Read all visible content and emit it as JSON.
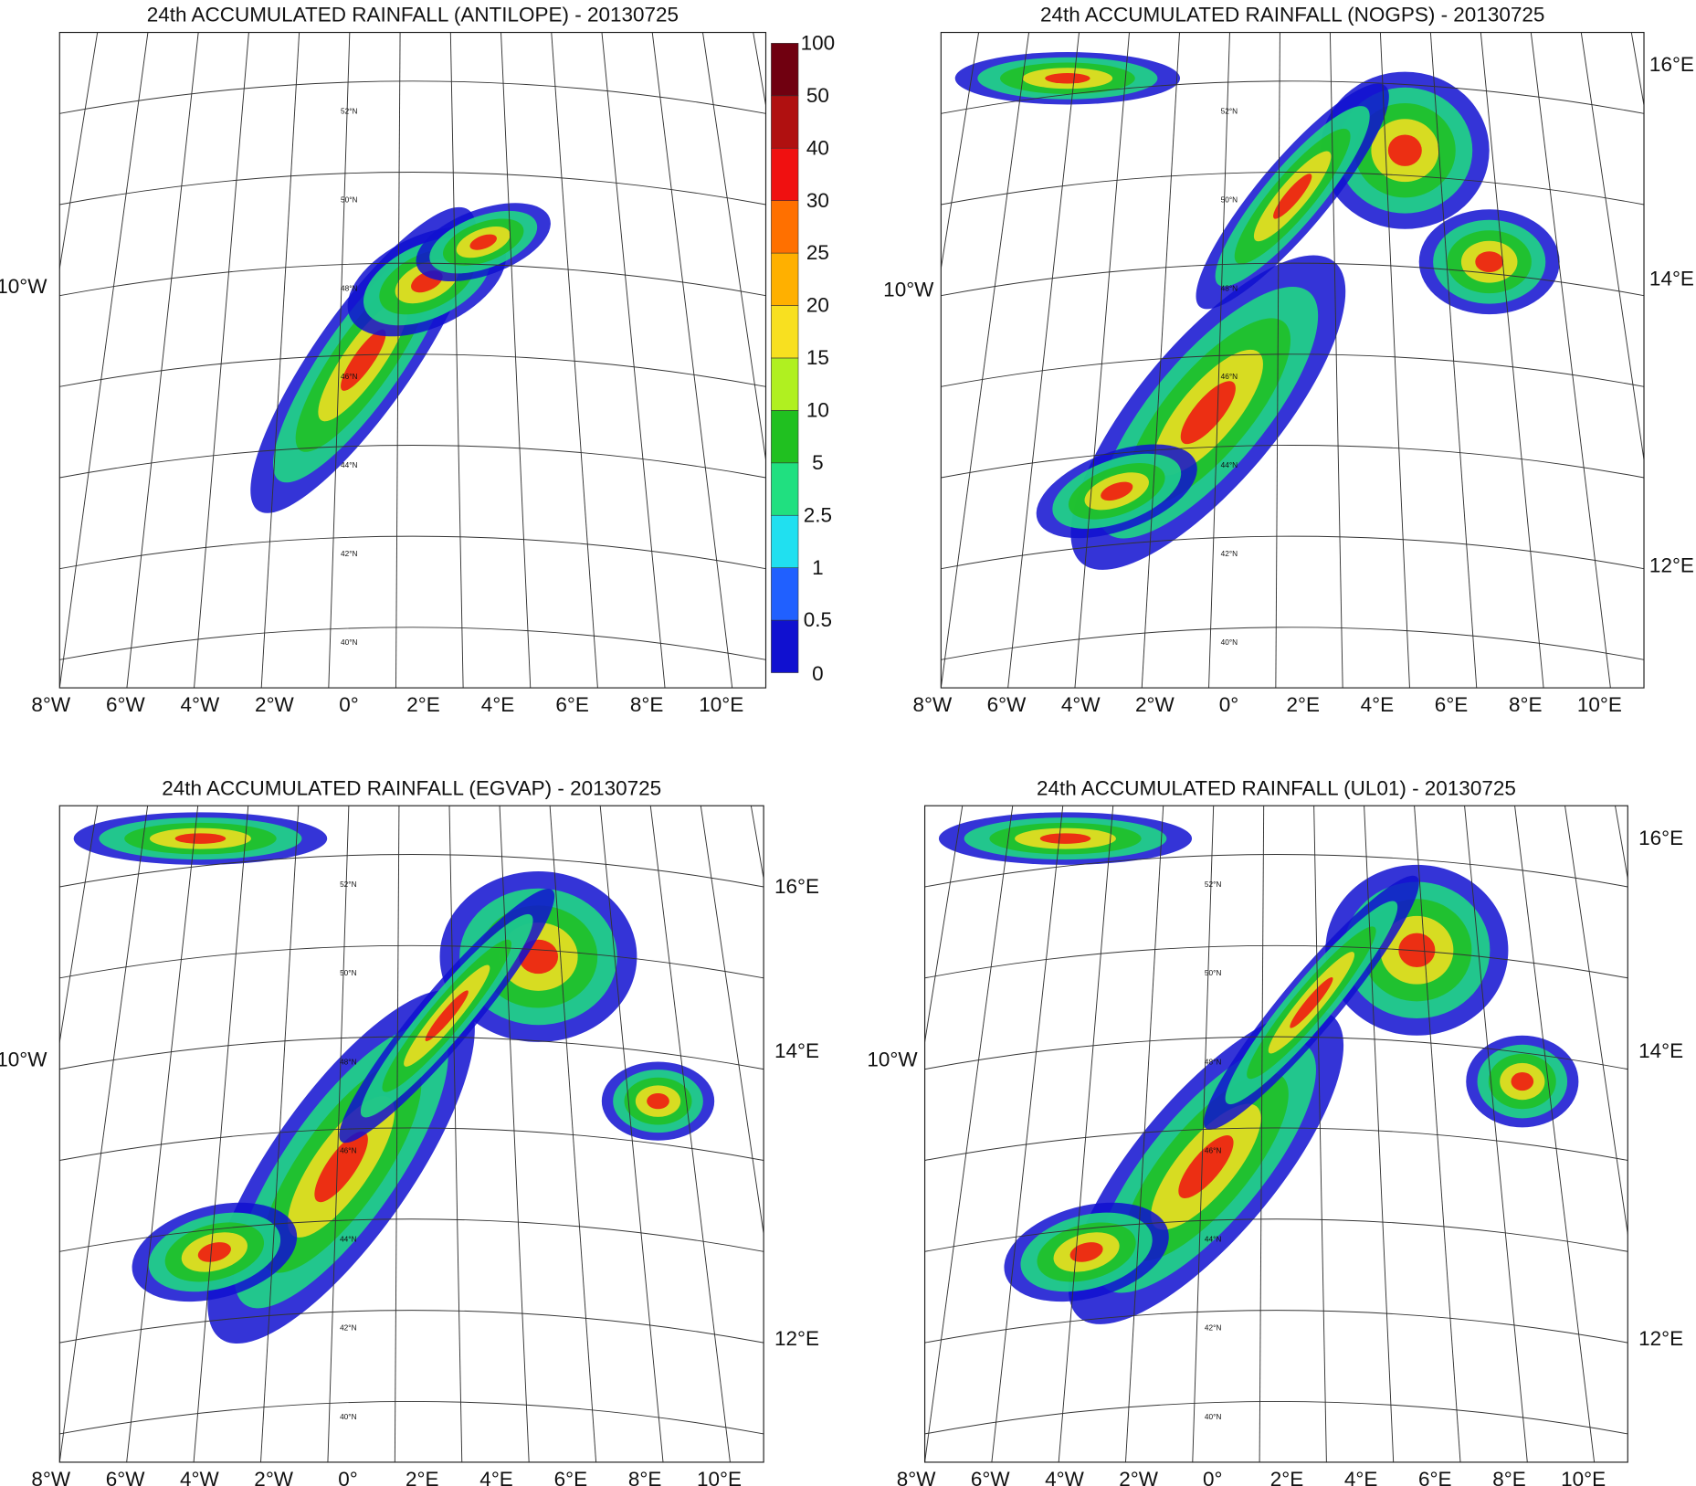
{
  "panels": [
    {
      "title": "24th ACCUMULATED RAINFALL (ANTILOPE) - 20130725",
      "lon_labels": [
        "8°W",
        "6°W",
        "4°W",
        "2°W",
        "0°",
        "2°E",
        "4°E",
        "6°E",
        "8°E",
        "10°E"
      ],
      "left_labels": [
        "10°W"
      ],
      "right_labels": [],
      "lat_labels": [
        "52°N",
        "50°N",
        "48°N",
        "46°N",
        "44°N",
        "42°N",
        "40°N"
      ]
    },
    {
      "title": "24th ACCUMULATED RAINFALL (NOGPS) - 20130725",
      "lon_labels": [
        "8°W",
        "6°W",
        "4°W",
        "2°W",
        "0°",
        "2°E",
        "4°E",
        "6°E",
        "8°E",
        "10°E"
      ],
      "left_labels": [
        "10°W"
      ],
      "right_labels": [
        "16°E",
        "14°E",
        "12°E"
      ],
      "lat_labels": [
        "52°N",
        "50°N",
        "48°N",
        "46°N",
        "44°N",
        "42°N",
        "40°N"
      ]
    },
    {
      "title": "24th ACCUMULATED RAINFALL (EGVAP) - 20130725",
      "lon_labels": [
        "8°W",
        "6°W",
        "4°W",
        "2°W",
        "0°",
        "2°E",
        "4°E",
        "6°E",
        "8°E",
        "10°E"
      ],
      "left_labels": [
        "10°W"
      ],
      "right_labels": [
        "16°E",
        "14°E",
        "12°E"
      ],
      "lat_labels": [
        "52°N",
        "50°N",
        "48°N",
        "46°N",
        "44°N",
        "42°N",
        "40°N"
      ]
    },
    {
      "title": "24th ACCUMULATED RAINFALL (UL01) - 20130725",
      "lon_labels": [
        "8°W",
        "6°W",
        "4°W",
        "2°W",
        "0°",
        "2°E",
        "4°E",
        "6°E",
        "8°E",
        "10°E"
      ],
      "left_labels": [
        "10°W"
      ],
      "right_labels": [
        "16°E",
        "14°E",
        "12°E"
      ],
      "lat_labels": [
        "52°N",
        "50°N",
        "48°N",
        "46°N",
        "44°N",
        "42°N",
        "40°N"
      ]
    }
  ],
  "colorbar": {
    "levels": [
      0,
      0.5,
      1,
      2.5,
      5,
      10,
      15,
      20,
      25,
      30,
      40,
      50,
      100
    ],
    "colors": [
      "#0a0a6e",
      "#1010d0",
      "#2060ff",
      "#20e0f0",
      "#20e080",
      "#20c020",
      "#b0f020",
      "#f8e020",
      "#ffb000",
      "#ff7000",
      "#f01010",
      "#b01010",
      "#700010"
    ]
  }
}
